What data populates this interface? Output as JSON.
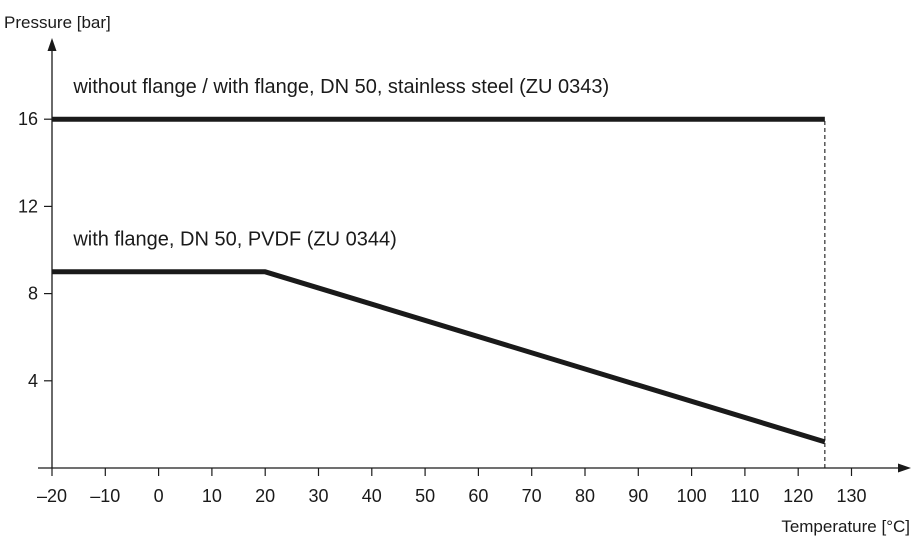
{
  "chart_data": {
    "type": "line",
    "title": "",
    "xlabel": "Temperature [°C]",
    "ylabel": "Pressure [bar]",
    "xlim": [
      -20,
      140
    ],
    "ylim": [
      0,
      20
    ],
    "x_ticks": [
      -20,
      -10,
      0,
      10,
      20,
      30,
      40,
      50,
      60,
      70,
      80,
      90,
      100,
      110,
      120,
      130
    ],
    "x_tick_labels": [
      "–20",
      "–10",
      "0",
      "10",
      "20",
      "30",
      "40",
      "50",
      "60",
      "70",
      "80",
      "90",
      "100",
      "110",
      "120",
      "130"
    ],
    "y_ticks": [
      4,
      8,
      12,
      16
    ],
    "y_tick_labels": [
      "4",
      "8",
      "12",
      "16"
    ],
    "grid": false,
    "series": [
      {
        "name": "without flange / with flange, DN 50, stainless steel (ZU 0343)",
        "x": [
          -20,
          125
        ],
        "y": [
          16,
          16
        ],
        "color": "#1a1a1a",
        "label_at": [
          -16,
          17.2
        ]
      },
      {
        "name": "with flange, DN 50, PVDF (ZU 0344)",
        "x": [
          -20,
          20,
          125
        ],
        "y": [
          9,
          9,
          1.2
        ],
        "color": "#1a1a1a",
        "label_at": [
          -16,
          10.2
        ]
      }
    ],
    "reference_lines": [
      {
        "type": "vertical",
        "x": 125,
        "y_from": 0,
        "y_to": 16,
        "style": "dashed"
      }
    ]
  }
}
